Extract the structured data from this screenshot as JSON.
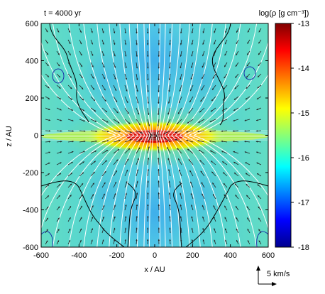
{
  "chart_data": {
    "type": "heatmap",
    "panel_label": "t = 4000 yr",
    "xlabel": "x / AU",
    "ylabel": "z / AU",
    "xlim": [
      -600,
      600
    ],
    "ylim": [
      -600,
      600
    ],
    "x_ticks": [
      -600,
      -400,
      -200,
      0,
      200,
      400,
      600
    ],
    "y_ticks": [
      -600,
      -400,
      -200,
      0,
      200,
      400,
      600
    ],
    "colorbar": {
      "label": "log(ρ [g cm⁻³])",
      "range": [
        -18,
        -13
      ],
      "ticks": [
        -18,
        -17,
        -16,
        -15,
        -14,
        -13
      ],
      "colormap": "jet"
    },
    "velocity_scale_label": "5 km/s",
    "colors": {
      "field_lines": "#ffffff",
      "contour_black": "#000000",
      "contour_blue": "#1a2fa8",
      "arrows": "#222222"
    }
  }
}
